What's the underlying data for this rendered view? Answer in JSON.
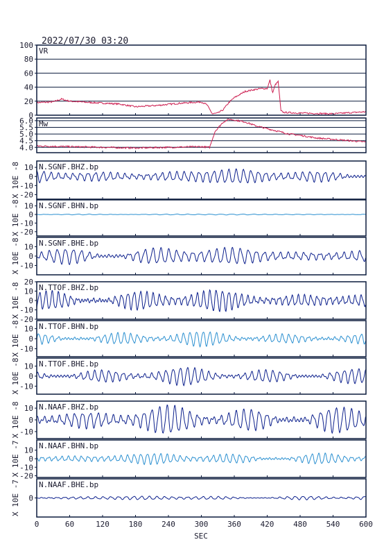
{
  "title": "2022/07/30 03:20",
  "xlabel": "SEC",
  "colors": {
    "frame": "#0a1a3c",
    "vr": "#cc1e50",
    "dark": "#0b1f8c",
    "light": "#2a8fd0"
  },
  "chart_data": [
    {
      "type": "line",
      "label": "VR",
      "xlim": [
        0,
        600
      ],
      "ylim": [
        0,
        100
      ],
      "yticks": [
        "0",
        "20",
        "40",
        "60",
        "80",
        "100"
      ],
      "grid": true,
      "x": [
        0,
        30,
        45,
        60,
        100,
        150,
        180,
        220,
        260,
        300,
        310,
        320,
        330,
        340,
        350,
        360,
        380,
        400,
        410,
        420,
        425,
        430,
        435,
        440,
        445,
        450,
        480,
        540,
        600
      ],
      "y": [
        18,
        19,
        23,
        20,
        18,
        16,
        12,
        14,
        17,
        19,
        15,
        2,
        3,
        8,
        18,
        25,
        34,
        37,
        38,
        38,
        50,
        32,
        44,
        48,
        6,
        4,
        3,
        2,
        5
      ]
    },
    {
      "type": "line",
      "label": "Mw",
      "xlim": [
        0,
        600
      ],
      "ylim": [
        3.6,
        6.2
      ],
      "yticks": [
        "4.0",
        "4.5",
        "5.0",
        "5.5",
        "6.0"
      ],
      "grid": true,
      "x": [
        0,
        60,
        120,
        180,
        240,
        300,
        315,
        325,
        340,
        350,
        360,
        380,
        400,
        420,
        440,
        460,
        480,
        510,
        540,
        570,
        600
      ],
      "y": [
        4.1,
        4.05,
        4.0,
        3.95,
        4.0,
        4.05,
        4.0,
        5.2,
        5.9,
        6.1,
        6.05,
        5.9,
        5.6,
        5.4,
        5.2,
        5.0,
        4.9,
        4.7,
        4.6,
        4.5,
        4.4
      ]
    },
    {
      "type": "line",
      "label": "N.SGNF.BHZ.bp",
      "unit": "X 10E -8",
      "xlim": [
        0,
        600
      ],
      "ylim": [
        -25,
        17
      ],
      "yticks": [
        "10",
        "0",
        "-10",
        "-20"
      ],
      "amplitude": 8,
      "period": 13.5
    },
    {
      "type": "line",
      "label": "N.SGNF.BHN.bp",
      "unit": "X 10E -8",
      "xlim": [
        0,
        600
      ],
      "ylim": [
        -25,
        17
      ],
      "yticks": [
        "10",
        "0",
        "-10",
        "-20"
      ],
      "amplitude": 0.6,
      "period": 20
    },
    {
      "type": "line",
      "label": "N.SGNF.BHE.bp",
      "unit": "X 10E -8",
      "xlim": [
        0,
        600
      ],
      "ylim": [
        -20,
        20
      ],
      "yticks": [
        "10",
        "0",
        "-10"
      ],
      "amplitude": 9,
      "period": 14.5
    },
    {
      "type": "line",
      "label": "N.TTOF.BHZ.bp",
      "unit": "X 10E -8",
      "xlim": [
        0,
        600
      ],
      "ylim": [
        -20,
        20
      ],
      "yticks": [
        "20",
        "10",
        "0",
        "-10",
        "-20"
      ],
      "amplitude": 10,
      "period": 11.5
    },
    {
      "type": "line",
      "label": "N.TTOF.BHN.bp",
      "unit": "X 10E -8",
      "xlim": [
        0,
        600
      ],
      "ylim": [
        -18,
        18
      ],
      "yticks": [
        "10",
        "0",
        "-10"
      ],
      "amplitude": 6,
      "period": 12
    },
    {
      "type": "line",
      "label": "N.TTOF.BHE.bp",
      "unit": "X 10E -8",
      "xlim": [
        0,
        600
      ],
      "ylim": [
        -18,
        18
      ],
      "yticks": [
        "10",
        "0",
        "-10"
      ],
      "amplitude": 7,
      "period": 13
    },
    {
      "type": "line",
      "label": "N.NAAF.BHZ.bp",
      "unit": "X 10E -8",
      "xlim": [
        0,
        600
      ],
      "ylim": [
        -16,
        16
      ],
      "yticks": [
        "10",
        "0",
        "-10"
      ],
      "amplitude": 10,
      "period": 14
    },
    {
      "type": "line",
      "label": "N.NAAF.BHN.bp",
      "unit": "X 10E -7",
      "xlim": [
        0,
        600
      ],
      "ylim": [
        -22,
        22
      ],
      "yticks": [
        "10",
        "0",
        "-10",
        "-20"
      ],
      "amplitude": 6,
      "period": 12
    },
    {
      "type": "line",
      "label": "N.NAAF.BHE.bp",
      "unit": "X 10E -7",
      "xlim": [
        0,
        600
      ],
      "ylim": [
        -12,
        12
      ],
      "yticks": [
        "0"
      ],
      "amplitude": 1.2,
      "period": 14
    }
  ],
  "xticks": [
    "0",
    "60",
    "120",
    "180",
    "240",
    "300",
    "360",
    "420",
    "480",
    "540",
    "600"
  ]
}
